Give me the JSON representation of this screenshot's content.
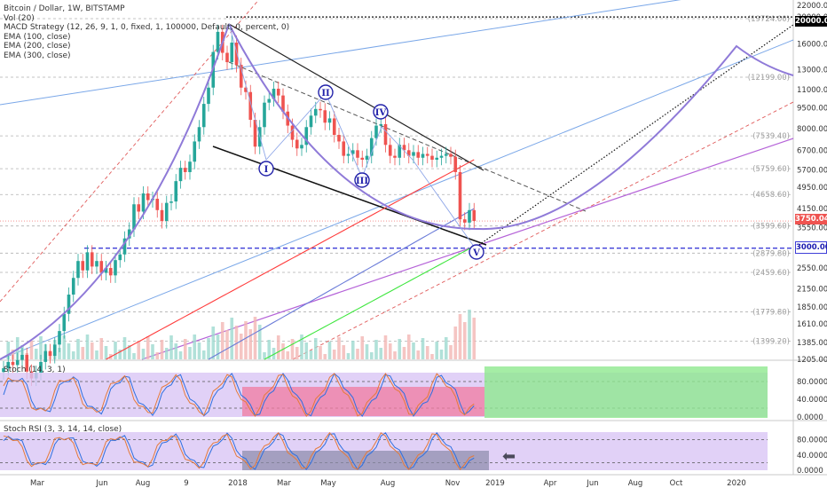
{
  "legend": {
    "title": "Bitcoin / Dollar, 1W, BITSTAMP",
    "lines": [
      "Vol (20)",
      "MACD Strategy (12, 26, 9, 1, 0, fixed, 1, 100000, Default, 0, percent, 0)",
      "EMA (100, close)",
      "EMA (200, close)",
      "EMA (300, close)"
    ]
  },
  "stoch_label": "Stoch (14, 3, 1)",
  "stochrsi_label": "Stoch RSI (3, 3, 14, 14, close)",
  "price_tags": {
    "top": "20000.00",
    "current": "3750.04",
    "support": "3000.00"
  },
  "colors": {
    "up": "#26a69a",
    "down": "#ef5350",
    "wave": "#8f7ad8",
    "ema100": "#ff3b3b",
    "ema200": "#6a7bd8",
    "ema300": "#3ee63e",
    "support": "#3e3ed8",
    "stoch_bg": "#d9c6f5",
    "stoch_bear_zone": "#f07aa0",
    "stoch_bull_zone": "#8fe88f"
  },
  "chart_data": {
    "type": "candlestick",
    "symbol": "Bitcoin / Dollar",
    "timeframe": "1W",
    "exchange": "BITSTAMP",
    "y_scale": "log",
    "y_ticks": [
      22000,
      20000,
      16000,
      13000,
      11000,
      9500,
      8000,
      6700,
      5700,
      4950,
      4150,
      3550,
      3000,
      2550,
      2150,
      1850,
      1610,
      1385,
      1205
    ],
    "x_ticks": [
      "Mar",
      "Jun",
      "Aug",
      "9",
      "2018",
      "Mar",
      "May",
      "Aug",
      "Nov",
      "2019",
      "Apr",
      "Jun",
      "Aug",
      "Oct",
      "2020"
    ],
    "fib_levels": [
      {
        "label": "(19724.00)",
        "value": 19724
      },
      {
        "label": "(12199.00)",
        "value": 12199
      },
      {
        "label": "(7539.40)",
        "value": 7539.4
      },
      {
        "label": "(5759.60)",
        "value": 5759.6
      },
      {
        "label": "(4658.60)",
        "value": 4658.6
      },
      {
        "label": "(3599.60)",
        "value": 3599.6
      },
      {
        "label": "(2879.80)",
        "value": 2879.8
      },
      {
        "label": "(2459.60)",
        "value": 2459.6
      },
      {
        "label": "(1779.80)",
        "value": 1779.8
      },
      {
        "label": "(1399.20)",
        "value": 1399.2
      }
    ],
    "closes": [
      1120,
      1180,
      1150,
      1200,
      1250,
      1090,
      1030,
      1080,
      1180,
      1290,
      1240,
      1360,
      1520,
      1750,
      2050,
      2350,
      2700,
      2500,
      2900,
      2580,
      2700,
      2450,
      2550,
      2400,
      2720,
      2850,
      3250,
      3500,
      4300,
      4050,
      4700,
      4450,
      4500,
      4100,
      3750,
      4350,
      4400,
      5200,
      5800,
      5600,
      6100,
      7200,
      8100,
      9800,
      11200,
      15000,
      17700,
      14900,
      13800,
      16200,
      13500,
      11200,
      10800,
      8600,
      6900,
      8100,
      9900,
      10200,
      11100,
      10500,
      9200,
      8200,
      7300,
      6800,
      7000,
      8100,
      8900,
      9400,
      9300,
      8400,
      8700,
      7600,
      7200,
      6400,
      6500,
      6700,
      6300,
      6200,
      6400,
      7400,
      8200,
      8300,
      7000,
      6400,
      6300,
      7000,
      6700,
      6400,
      6600,
      6300,
      6500,
      6400,
      6200,
      6300,
      6400,
      6500,
      6350,
      5600,
      3800,
      3700,
      4100,
      3750
    ],
    "waves": [
      "I",
      "II",
      "III",
      "IV",
      "V"
    ],
    "stoch": {
      "upper": 80,
      "lower": 20,
      "ticks": [
        "80.0000",
        "40.0000",
        "0.0000"
      ]
    },
    "stoch_rsi": {
      "upper": 80,
      "lower": 20,
      "ticks": [
        "80.0000",
        "40.0000",
        "0.0000"
      ]
    }
  }
}
